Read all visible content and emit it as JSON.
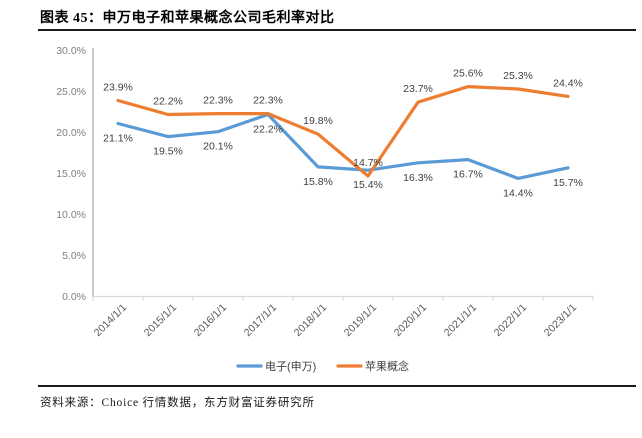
{
  "header": {
    "title": "图表 45：申万电子和苹果概念公司毛利率对比"
  },
  "chart_data": {
    "type": "line",
    "title": "申万电子和苹果概念公司毛利率对比",
    "categories": [
      "2014/1/1",
      "2015/1/1",
      "2016/1/1",
      "2017/1/1",
      "2018/1/1",
      "2019/1/1",
      "2020/1/1",
      "2021/1/1",
      "2022/1/1",
      "2023/1/1"
    ],
    "series": [
      {
        "name": "电子(申万)",
        "color": "#5B9BD5",
        "label_position": "below",
        "values": [
          21.1,
          19.5,
          20.1,
          22.2,
          15.8,
          15.4,
          16.3,
          16.7,
          14.4,
          15.7
        ]
      },
      {
        "name": "苹果概念",
        "color": "#ED7D31",
        "label_position": "above",
        "values": [
          23.9,
          22.2,
          22.3,
          22.3,
          19.8,
          14.7,
          23.7,
          25.6,
          25.3,
          24.4
        ]
      }
    ],
    "xlabel": "",
    "ylabel": "",
    "ylim": [
      0,
      30
    ],
    "ytick_step": 5,
    "ytick_labels": [
      "0.0%",
      "5.0%",
      "10.0%",
      "15.0%",
      "20.0%",
      "25.0%",
      "30.0%"
    ],
    "data_labels": true,
    "grid": false,
    "legend_position": "bottom"
  },
  "footer": {
    "source": "资料来源：Choice 行情数据，东方财富证券研究所"
  },
  "colors": {
    "y_axis_line": "#a6a6a6",
    "x_axis_line": "#d9d9d9",
    "y_tick_label": "#7f7f7f",
    "x_tick_label": "#595959",
    "data_label": "#404040",
    "legend_label": "#404040",
    "rule": "#1a1a1a"
  }
}
